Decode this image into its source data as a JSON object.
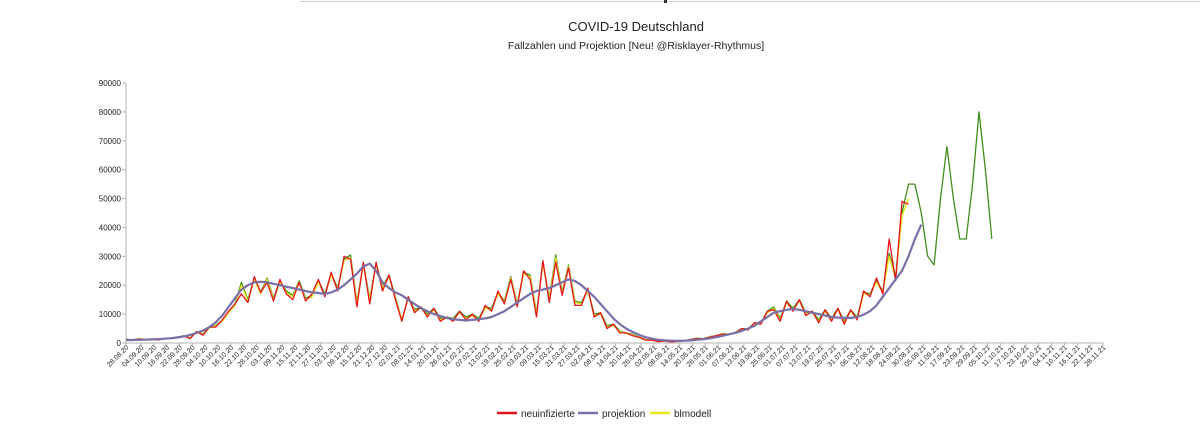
{
  "chart_data": {
    "type": "line",
    "title": "COVID-19 Deutschland",
    "subtitle": "Fallzahlen und Projektion [Neu! @Risklayer-Rhythmus]",
    "xlabel": "",
    "ylabel": "",
    "ylim": [
      0,
      90000
    ],
    "yticks": [
      0,
      10000,
      20000,
      30000,
      40000,
      50000,
      60000,
      70000,
      80000,
      90000
    ],
    "x_start": "28.08.20",
    "x_end": "28.11.21",
    "x_ticks": [
      "28.08.20",
      "04.09.20",
      "10.09.20",
      "16.09.20",
      "22.09.20",
      "28.09.20",
      "04.10.20",
      "10.10.20",
      "16.10.20",
      "22.10.20",
      "28.10.20",
      "03.11.20",
      "09.11.20",
      "15.11.20",
      "21.11.20",
      "27.11.20",
      "03.12.20",
      "09.12.20",
      "15.12.20",
      "21.12.20",
      "27.12.20",
      "02.01.21",
      "08.01.21",
      "14.01.21",
      "20.01.21",
      "26.01.21",
      "01.02.21",
      "07.02.21",
      "13.02.21",
      "19.02.21",
      "25.02.21",
      "03.03.21",
      "09.03.21",
      "15.03.21",
      "21.03.21",
      "27.03.21",
      "02.04.21",
      "08.04.21",
      "14.04.21",
      "20.04.21",
      "26.04.21",
      "02.05.21",
      "08.05.21",
      "14.05.21",
      "20.05.21",
      "26.05.21",
      "01.06.21",
      "07.06.21",
      "13.06.21",
      "19.06.21",
      "25.06.21",
      "01.07.21",
      "07.07.21",
      "13.07.21",
      "19.07.21",
      "25.07.21",
      "31.07.21",
      "06.08.21",
      "12.08.21",
      "18.08.21",
      "24.08.21",
      "30.08.21",
      "05.09.21",
      "11.09.21",
      "17.09.21",
      "23.09.21",
      "29.09.21",
      "05.10.21",
      "11.10.21",
      "17.10.21",
      "23.10.21",
      "29.10.21",
      "04.11.21",
      "10.11.21",
      "16.11.21",
      "22.11.21",
      "28.11.21"
    ],
    "grid": false,
    "legend_position": "bottom-center",
    "series_samples_every_days": 3,
    "series": [
      {
        "name": "neuinfizierte",
        "color": "#e8141d",
        "values": [
          1200,
          1000,
          1400,
          1200,
          1300,
          1100,
          1500,
          1600,
          1900,
          2500,
          1500,
          4000,
          2700,
          5500,
          5500,
          8000,
          11000,
          13500,
          17000,
          14000,
          23000,
          17500,
          21000,
          14500,
          22000,
          17000,
          15000,
          21000,
          14500,
          17000,
          22000,
          16000,
          24500,
          18000,
          30000,
          29000,
          12500,
          28000,
          13500,
          28000,
          18000,
          23500,
          15000,
          7500,
          16000,
          10500,
          12500,
          9000,
          12000,
          7500,
          9000,
          7500,
          11000,
          8000,
          10000,
          7500,
          13000,
          11000,
          18000,
          13500,
          22000,
          12500,
          25000,
          22000,
          9000,
          28500,
          14000,
          28000,
          16500,
          26000,
          13000,
          13000,
          19000,
          9000,
          10500,
          5000,
          6500,
          3500,
          3500,
          2500,
          2000,
          1000,
          1000,
          500,
          700,
          400,
          600,
          700,
          1200,
          1500,
          1500,
          2000,
          2500,
          3000,
          3000,
          3500,
          5000,
          4500,
          7000,
          6500,
          11000,
          11500,
          7500,
          14500,
          11000,
          15000,
          9500,
          11000,
          7000,
          11500,
          7500,
          12000,
          6500,
          11500,
          8000,
          18000,
          16000,
          22500,
          17000,
          36000,
          21500,
          49000,
          48000
        ]
      },
      {
        "name": "projektion",
        "color": "#7a6fa8",
        "values": [
          1000,
          1050,
          1100,
          1150,
          1250,
          1350,
          1500,
          1650,
          1900,
          2300,
          2800,
          3500,
          4300,
          5500,
          7200,
          9500,
          12500,
          15500,
          18500,
          20000,
          21000,
          21200,
          21000,
          20500,
          20000,
          19500,
          19000,
          18500,
          18000,
          17500,
          17300,
          17000,
          17500,
          18500,
          20000,
          22000,
          24000,
          26500,
          27500,
          25000,
          21000,
          19000,
          17500,
          16500,
          15000,
          13500,
          12000,
          11000,
          10000,
          9300,
          8700,
          8200,
          8000,
          7800,
          8000,
          8200,
          8500,
          9000,
          10000,
          11000,
          12500,
          14000,
          15500,
          17000,
          18000,
          18500,
          19000,
          20000,
          21000,
          22000,
          21500,
          20000,
          18000,
          16000,
          13500,
          11000,
          8500,
          6500,
          5000,
          3800,
          2800,
          2000,
          1500,
          1100,
          900,
          800,
          750,
          800,
          900,
          1100,
          1300,
          1600,
          2000,
          2500,
          3000,
          3500,
          4200,
          5000,
          6000,
          7500,
          9000,
          10500,
          11000,
          11500,
          11800,
          11500,
          11000,
          10500,
          10000,
          9500,
          9000,
          8800,
          8700,
          8700,
          9000,
          9800,
          11000,
          13000,
          16000,
          19000,
          22000,
          25000,
          30000,
          36000,
          41000
        ]
      },
      {
        "name": "blmodell",
        "color": "#e6e61c",
        "values": [
          1300,
          900,
          1500,
          1100,
          1400,
          1000,
          1600,
          1500,
          2000,
          2300,
          1700,
          3600,
          3000,
          5200,
          6000,
          7500,
          10500,
          13000,
          20000,
          14500,
          22000,
          17000,
          22000,
          15000,
          21000,
          17500,
          16000,
          21000,
          15000,
          16000,
          21000,
          16500,
          23500,
          18500,
          28500,
          29500,
          13500,
          27000,
          15000,
          27000,
          19000,
          23000,
          15500,
          7800,
          15500,
          11000,
          12000,
          9500,
          11500,
          8000,
          8500,
          8000,
          10500,
          8500,
          9500,
          8000,
          12000,
          11500,
          17000,
          14000,
          22500,
          13000,
          24000,
          23000,
          10000,
          27500,
          15000,
          29500,
          17000,
          26500,
          14000,
          13500,
          18000,
          9500,
          10000,
          5500,
          6000,
          4000,
          3200,
          2800,
          1800,
          1100,
          900,
          600,
          650,
          450,
          550,
          750,
          1100,
          1600,
          1400,
          2100,
          2400,
          3200,
          2900,
          3600,
          4800,
          4700,
          6800,
          6800,
          10500,
          12000,
          8000,
          14000,
          11500,
          14500,
          10000,
          10500,
          7500,
          11000,
          8000,
          11500,
          7000,
          11000,
          8500,
          17000,
          16500,
          21000,
          17500,
          30000,
          22000,
          44000,
          50000
        ]
      },
      {
        "name": "",
        "color": "#3f8f1c",
        "values": [
          1400,
          1000,
          1500,
          1200,
          1400,
          1100,
          1600,
          1600,
          2100,
          2400,
          1800,
          3800,
          3200,
          5400,
          6200,
          7800,
          10800,
          13500,
          21000,
          15000,
          22500,
          17500,
          22500,
          15500,
          21500,
          18000,
          16500,
          21500,
          15500,
          16500,
          21500,
          17000,
          24000,
          19000,
          29000,
          30500,
          14000,
          27500,
          15500,
          27500,
          19500,
          23500,
          16000,
          8000,
          16000,
          11500,
          12500,
          10000,
          12000,
          8500,
          9000,
          8500,
          11000,
          9000,
          10000,
          8500,
          12500,
          12000,
          17500,
          14500,
          23000,
          13500,
          24500,
          23500,
          10500,
          28000,
          15500,
          30500,
          17500,
          27000,
          14500,
          14000,
          18500,
          10000,
          10500,
          6000,
          6500,
          4200,
          3400,
          3000,
          2000,
          1200,
          1000,
          700,
          700,
          500,
          600,
          800,
          1200,
          1700,
          1500,
          2200,
          2500,
          3300,
          3000,
          3700,
          5000,
          4900,
          7000,
          7000,
          11000,
          12500,
          8500,
          14500,
          12000,
          15000,
          10500,
          11000,
          8000,
          11500,
          8500,
          12000,
          7500,
          11500,
          9000,
          17500,
          17000,
          21500,
          18000,
          31000,
          23000,
          45000,
          55000,
          55000,
          45000,
          30000,
          27000,
          50000,
          68000,
          50000,
          36000,
          36000,
          55000,
          80000,
          60000,
          36000
        ]
      }
    ]
  }
}
